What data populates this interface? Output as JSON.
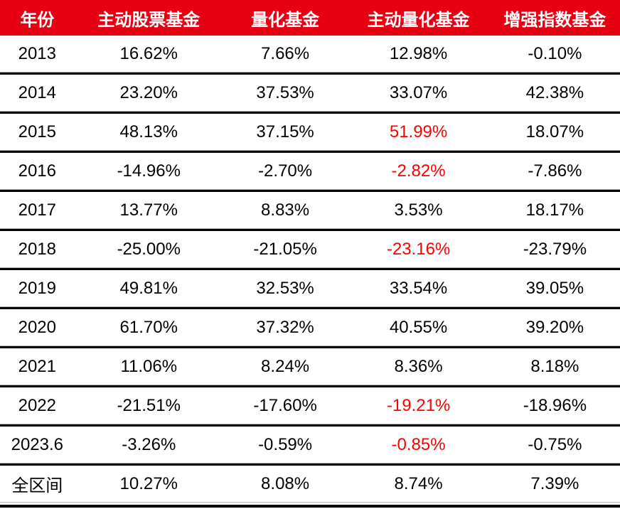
{
  "colors": {
    "header_bg": "#e60012",
    "header_text": "#ffffff",
    "highlight": "#ff0000",
    "text": "#000000",
    "divider_black": "#000000",
    "divider_gray": "#b3b3b3"
  },
  "chart_data": {
    "type": "table",
    "title": "",
    "columns": [
      "年份",
      "主动股票基金",
      "量化基金",
      "主动量化基金",
      "增强指数基金"
    ],
    "rows": [
      {
        "year": "2013",
        "values": [
          "16.62%",
          "7.66%",
          "12.98%",
          "-0.10%"
        ]
      },
      {
        "year": "2014",
        "values": [
          "23.20%",
          "37.53%",
          "33.07%",
          "42.38%"
        ]
      },
      {
        "year": "2015",
        "values": [
          "48.13%",
          "37.15%",
          "51.99%",
          "18.07%"
        ]
      },
      {
        "year": "2016",
        "values": [
          "-14.96%",
          "-2.70%",
          "-2.82%",
          "-7.86%"
        ]
      },
      {
        "year": "2017",
        "values": [
          "13.77%",
          "8.83%",
          "3.53%",
          "18.17%"
        ]
      },
      {
        "year": "2018",
        "values": [
          "-25.00%",
          "-21.05%",
          "-23.16%",
          "-23.79%"
        ]
      },
      {
        "year": "2019",
        "values": [
          "49.81%",
          "32.53%",
          "33.54%",
          "39.05%"
        ]
      },
      {
        "year": "2020",
        "values": [
          "61.70%",
          "37.32%",
          "40.55%",
          "39.20%"
        ]
      },
      {
        "year": "2021",
        "values": [
          "11.06%",
          "8.24%",
          "8.36%",
          "8.18%"
        ]
      },
      {
        "year": "2022",
        "values": [
          "-21.51%",
          "-17.60%",
          "-19.21%",
          "-18.96%"
        ]
      },
      {
        "year": "2023.6",
        "values": [
          "-3.26%",
          "-0.59%",
          "-0.85%",
          "-0.75%"
        ]
      },
      {
        "year": "全区间",
        "values": [
          "10.27%",
          "8.08%",
          "8.74%",
          "7.39%"
        ]
      }
    ],
    "highlighted_cells": [
      {
        "row": "2015",
        "column": "主动量化基金",
        "value": "51.99%"
      },
      {
        "row": "2016",
        "column": "主动量化基金",
        "value": "-2.82%"
      },
      {
        "row": "2018",
        "column": "主动量化基金",
        "value": "-23.16%"
      },
      {
        "row": "2022",
        "column": "主动量化基金",
        "value": "-19.21%"
      },
      {
        "row": "2023.6",
        "column": "主动量化基金",
        "value": "-0.85%"
      }
    ]
  }
}
